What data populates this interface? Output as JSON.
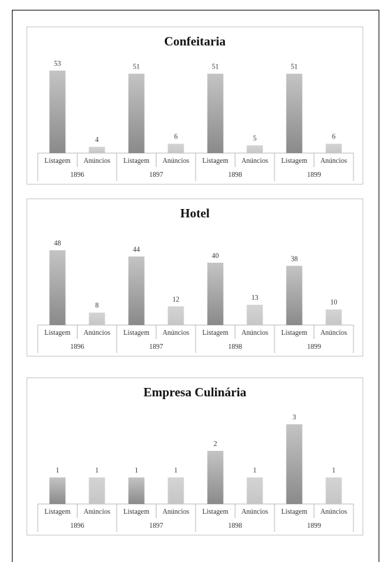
{
  "chart_data": [
    {
      "type": "bar",
      "title": "Confeitaria",
      "groups": [
        "1896",
        "1897",
        "1898",
        "1899"
      ],
      "categories": [
        "Listagem",
        "Anúncios"
      ],
      "values": [
        [
          53,
          4
        ],
        [
          51,
          6
        ],
        [
          51,
          5
        ],
        [
          51,
          6
        ]
      ],
      "xlabel": "",
      "ylabel": "",
      "grid": false,
      "legend": "none",
      "colors": {
        "Listagem": "#9a9a9a",
        "Anúncios": "#cccccc"
      }
    },
    {
      "type": "bar",
      "title": "Hotel",
      "groups": [
        "1896",
        "1897",
        "1898",
        "1899"
      ],
      "categories": [
        "Listagem",
        "Anúncios"
      ],
      "values": [
        [
          48,
          8
        ],
        [
          44,
          12
        ],
        [
          40,
          13
        ],
        [
          38,
          10
        ]
      ],
      "xlabel": "",
      "ylabel": "",
      "grid": false,
      "legend": "none",
      "colors": {
        "Listagem": "#9a9a9a",
        "Anúncios": "#cccccc"
      }
    },
    {
      "type": "bar",
      "title": "Empresa Culinária",
      "groups": [
        "1896",
        "1897",
        "1898",
        "1899"
      ],
      "categories": [
        "Listagem",
        "Anúncios"
      ],
      "values": [
        [
          1,
          1
        ],
        [
          1,
          1
        ],
        [
          2,
          1
        ],
        [
          3,
          1
        ]
      ],
      "xlabel": "",
      "ylabel": "",
      "grid": false,
      "legend": "none",
      "colors": {
        "Listagem": "#9a9a9a",
        "Anúncios": "#cccccc"
      }
    }
  ]
}
